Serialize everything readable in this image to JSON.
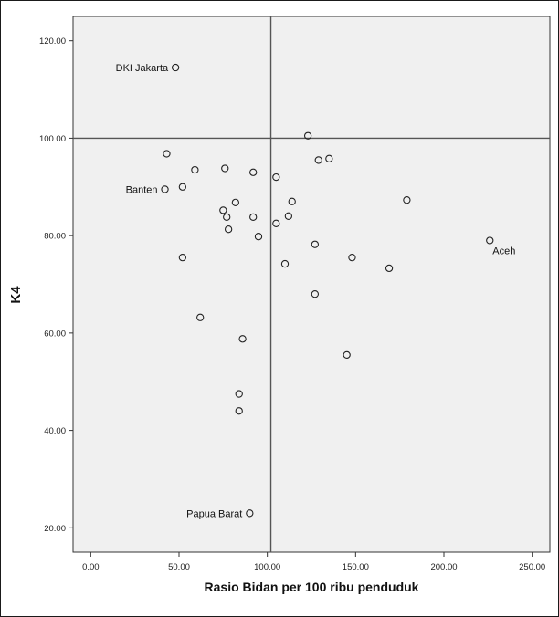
{
  "chart_data": {
    "type": "scatter",
    "title": "",
    "xlabel": "Rasio Bidan per 100 ribu penduduk",
    "ylabel": "K4",
    "xlim": [
      -10,
      260
    ],
    "ylim": [
      15,
      125
    ],
    "x_ticks": [
      "0.00",
      "50.00",
      "100.00",
      "150.00",
      "200.00",
      "250.00"
    ],
    "x_tick_values": [
      0,
      50,
      100,
      150,
      200,
      250
    ],
    "y_ticks": [
      "20.00",
      "40.00",
      "60.00",
      "80.00",
      "100.00",
      "120.00"
    ],
    "y_tick_values": [
      20,
      40,
      60,
      80,
      100,
      120
    ],
    "grid": false,
    "reference_lines": {
      "x": 102,
      "y": 100
    },
    "colors": {
      "plot_background": "#f0f0f0",
      "marker_stroke": "#222222",
      "reference_line": "#555555"
    },
    "points": [
      {
        "x": 48,
        "y": 114.5,
        "label": "DKI Jakarta"
      },
      {
        "x": 42,
        "y": 89.5,
        "label": "Banten"
      },
      {
        "x": 226,
        "y": 79,
        "label": "Aceh"
      },
      {
        "x": 90,
        "y": 23,
        "label": "Papua Barat"
      },
      {
        "x": 123,
        "y": 100.5
      },
      {
        "x": 43,
        "y": 96.8
      },
      {
        "x": 59,
        "y": 93.5
      },
      {
        "x": 76,
        "y": 93.8
      },
      {
        "x": 92,
        "y": 93
      },
      {
        "x": 105,
        "y": 92
      },
      {
        "x": 129,
        "y": 95.5
      },
      {
        "x": 135,
        "y": 95.8
      },
      {
        "x": 52,
        "y": 90
      },
      {
        "x": 82,
        "y": 86.8
      },
      {
        "x": 75,
        "y": 85.2
      },
      {
        "x": 77,
        "y": 83.8
      },
      {
        "x": 92,
        "y": 83.8
      },
      {
        "x": 114,
        "y": 87
      },
      {
        "x": 112,
        "y": 84
      },
      {
        "x": 105,
        "y": 82.5
      },
      {
        "x": 78,
        "y": 81.3
      },
      {
        "x": 95,
        "y": 79.8
      },
      {
        "x": 127,
        "y": 78.2
      },
      {
        "x": 179,
        "y": 87.3
      },
      {
        "x": 52,
        "y": 75.5
      },
      {
        "x": 110,
        "y": 74.2
      },
      {
        "x": 148,
        "y": 75.5
      },
      {
        "x": 169,
        "y": 73.3
      },
      {
        "x": 127,
        "y": 68
      },
      {
        "x": 62,
        "y": 63.2
      },
      {
        "x": 86,
        "y": 58.8
      },
      {
        "x": 145,
        "y": 55.5
      },
      {
        "x": 84,
        "y": 47.5
      },
      {
        "x": 84,
        "y": 44
      }
    ]
  }
}
